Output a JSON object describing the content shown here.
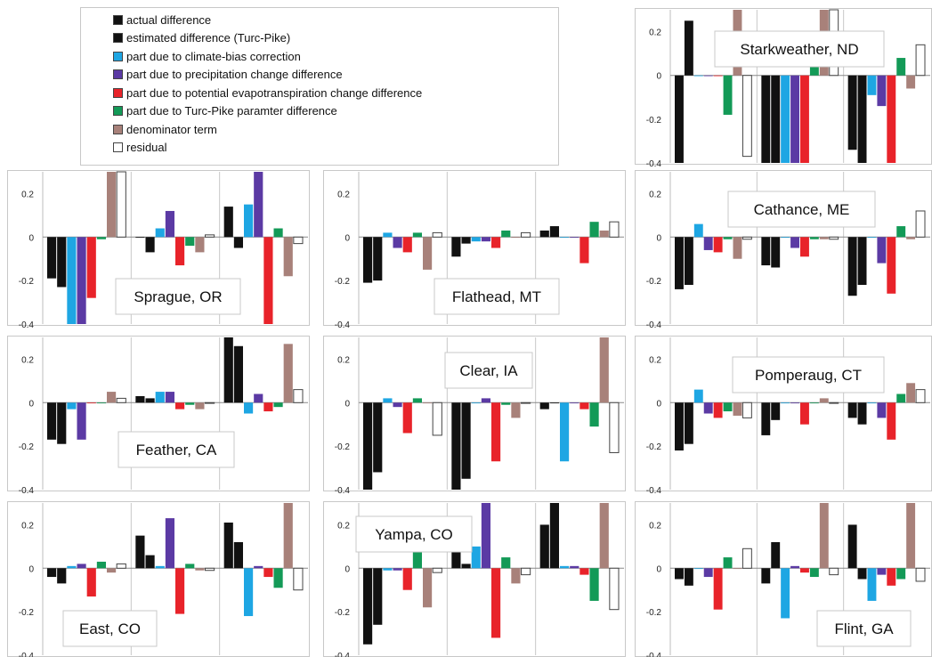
{
  "colors": [
    "#111111",
    "#111111",
    "#1ea6e3",
    "#5b3aa4",
    "#e8232a",
    "#139a57",
    "#a8817a",
    "#ffffff"
  ],
  "legend": [
    "actual difference",
    "estimated difference (Turc-Pike)",
    "part due to climate-bias correction",
    "part due to precipitation change difference",
    "part due to potential evapotranspiration change difference",
    "part due to Turc-Pike paramter difference",
    "denominator term",
    "residual"
  ],
  "chart_data": [
    {
      "type": "bar",
      "title": "Starkweather, ND",
      "ylim": [
        -0.4,
        0.3
      ],
      "ticks": [
        "0.2",
        "0",
        "-0.2",
        "-0.4"
      ],
      "groups": [
        [
          -0.4,
          0.25,
          0.0,
          0.0,
          0.0,
          -0.18,
          0.3,
          -0.37
        ],
        [
          -0.4,
          -0.4,
          -0.4,
          -0.4,
          -0.4,
          0.07,
          0.3,
          0.3
        ],
        [
          -0.34,
          -0.4,
          -0.09,
          -0.14,
          -0.4,
          0.08,
          -0.06,
          0.14
        ]
      ]
    },
    {
      "type": "bar",
      "title": "Sprague, OR",
      "ylim": [
        -0.4,
        0.3
      ],
      "ticks": [
        "0.2",
        "0",
        "-0.2",
        "-0.4"
      ],
      "groups": [
        [
          -0.19,
          -0.23,
          -0.4,
          -0.4,
          -0.28,
          -0.01,
          0.3,
          0.3
        ],
        [
          0.0,
          -0.07,
          0.04,
          0.12,
          -0.13,
          -0.04,
          -0.07,
          0.01
        ],
        [
          0.14,
          -0.05,
          0.15,
          0.3,
          -0.4,
          0.04,
          -0.18,
          -0.03
        ]
      ]
    },
    {
      "type": "bar",
      "title": "Flathead, MT",
      "ylim": [
        -0.4,
        0.3
      ],
      "ticks": [
        "0.2",
        "0",
        "-0.2",
        "-0.4"
      ],
      "groups": [
        [
          -0.21,
          -0.2,
          0.02,
          -0.05,
          -0.07,
          0.02,
          -0.15,
          0.02
        ],
        [
          -0.09,
          -0.03,
          -0.02,
          -0.02,
          -0.05,
          0.03,
          0.0,
          0.02
        ],
        [
          0.03,
          0.05,
          0.0,
          0.0,
          -0.12,
          0.07,
          0.03,
          0.07
        ]
      ]
    },
    {
      "type": "bar",
      "title": "Cathance, ME",
      "ylim": [
        -0.4,
        0.3
      ],
      "ticks": [
        "0.2",
        "0",
        "-0.2",
        "-0.4"
      ],
      "groups": [
        [
          -0.24,
          -0.22,
          0.06,
          -0.06,
          -0.07,
          -0.01,
          -0.1,
          -0.01
        ],
        [
          -0.13,
          -0.14,
          0.0,
          -0.05,
          -0.09,
          -0.01,
          -0.01,
          -0.01
        ],
        [
          -0.27,
          -0.22,
          0.0,
          -0.12,
          -0.26,
          0.05,
          -0.01,
          0.12
        ]
      ]
    },
    {
      "type": "bar",
      "title": "Feather, CA",
      "ylim": [
        -0.4,
        0.3
      ],
      "ticks": [
        "0.2",
        "0",
        "-0.2",
        "-0.4"
      ],
      "groups": [
        [
          -0.17,
          -0.19,
          -0.03,
          -0.17,
          0.0,
          0.0,
          0.05,
          0.02
        ],
        [
          0.03,
          0.02,
          0.05,
          0.05,
          -0.03,
          -0.01,
          -0.03,
          0.0
        ],
        [
          0.3,
          0.26,
          -0.05,
          0.04,
          -0.04,
          -0.02,
          0.27,
          0.06
        ]
      ]
    },
    {
      "type": "bar",
      "title": "Clear, IA",
      "ylim": [
        -0.4,
        0.3
      ],
      "ticks": [
        "0.2",
        "0",
        "-0.2",
        "-0.4"
      ],
      "groups": [
        [
          -0.4,
          -0.32,
          0.02,
          -0.02,
          -0.14,
          0.02,
          0.0,
          -0.15
        ],
        [
          -0.4,
          -0.35,
          0.0,
          0.02,
          -0.27,
          -0.01,
          -0.07,
          0.0
        ],
        [
          -0.03,
          0.0,
          -0.27,
          0.0,
          -0.03,
          -0.11,
          0.3,
          -0.23
        ]
      ]
    },
    {
      "type": "bar",
      "title": "Pomperaug, CT",
      "ylim": [
        -0.4,
        0.3
      ],
      "ticks": [
        "0.2",
        "0",
        "-0.2",
        "-0.4"
      ],
      "groups": [
        [
          -0.22,
          -0.19,
          0.06,
          -0.05,
          -0.07,
          -0.04,
          -0.06,
          -0.07
        ],
        [
          -0.15,
          -0.08,
          0.0,
          0.0,
          -0.1,
          0.0,
          0.02,
          0.0
        ],
        [
          -0.07,
          -0.1,
          0.0,
          -0.07,
          -0.17,
          0.04,
          0.09,
          0.06
        ]
      ]
    },
    {
      "type": "bar",
      "title": "East, CO",
      "ylim": [
        -0.4,
        0.3
      ],
      "ticks": [
        "0.2",
        "0",
        "-0.2",
        "-0.4"
      ],
      "groups": [
        [
          -0.04,
          -0.07,
          0.01,
          0.02,
          -0.13,
          0.03,
          -0.02,
          0.02
        ],
        [
          0.15,
          0.06,
          0.01,
          0.23,
          -0.21,
          0.02,
          -0.01,
          -0.01
        ],
        [
          0.21,
          0.12,
          -0.22,
          0.01,
          -0.04,
          -0.09,
          0.3,
          -0.1
        ]
      ]
    },
    {
      "type": "bar",
      "title": "Yampa, CO",
      "ylim": [
        -0.4,
        0.3
      ],
      "ticks": [
        "0.2",
        "0",
        "-0.2",
        "-0.4"
      ],
      "groups": [
        [
          -0.35,
          -0.26,
          -0.01,
          -0.01,
          -0.1,
          0.08,
          -0.18,
          -0.02
        ],
        [
          0.08,
          0.02,
          0.1,
          0.3,
          -0.32,
          0.05,
          -0.07,
          -0.03
        ],
        [
          0.2,
          0.3,
          0.01,
          0.01,
          -0.03,
          -0.15,
          0.3,
          -0.19
        ]
      ]
    },
    {
      "type": "bar",
      "title": "Flint, GA",
      "ylim": [
        -0.4,
        0.3
      ],
      "ticks": [
        "0.2",
        "0",
        "-0.2",
        "-0.4"
      ],
      "groups": [
        [
          -0.05,
          -0.08,
          0.0,
          -0.04,
          -0.19,
          0.05,
          0.0,
          0.09
        ],
        [
          -0.07,
          0.12,
          -0.23,
          0.01,
          -0.02,
          -0.04,
          0.3,
          -0.03
        ],
        [
          0.2,
          -0.05,
          -0.15,
          -0.03,
          -0.08,
          -0.05,
          0.3,
          -0.06
        ]
      ]
    }
  ]
}
